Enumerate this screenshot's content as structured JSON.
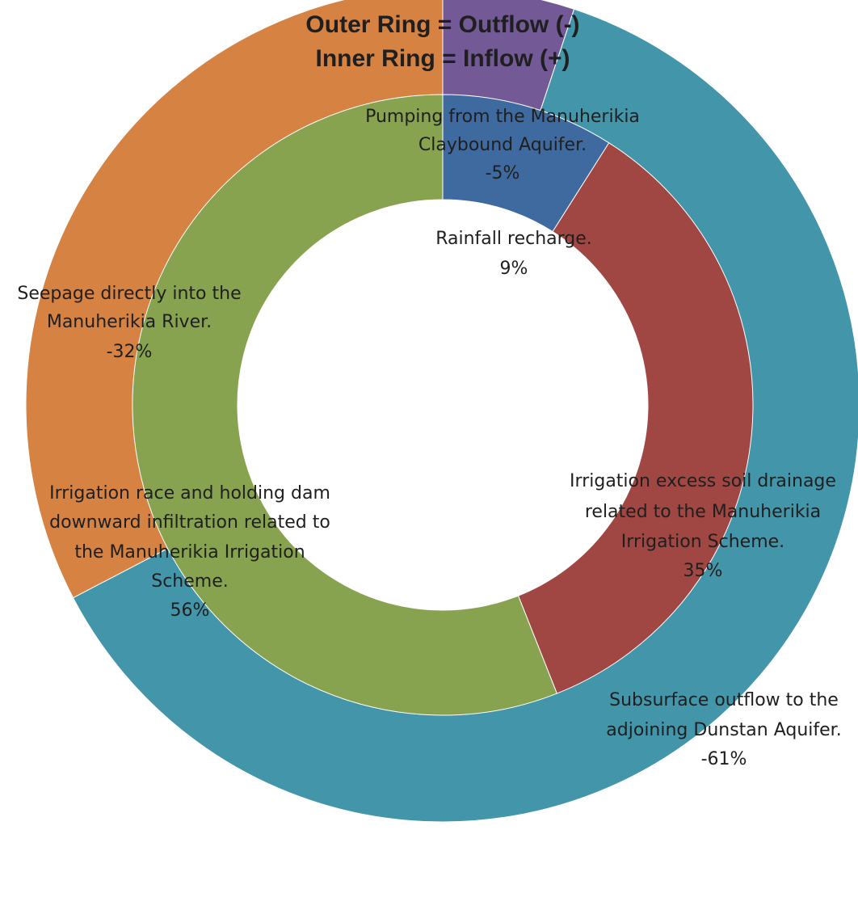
{
  "chart_data": {
    "type": "pie",
    "subtype": "doughnut",
    "title_lines": [
      "Outer Ring = Outflow (-)",
      "Inner Ring = Inflow (+)"
    ],
    "rings": [
      {
        "name": "Outflow",
        "position": "outer",
        "slices": [
          {
            "label": "Pumping from the Manuherikia Claybound Aquifer.",
            "value": -5,
            "value_label": "-5%",
            "color": "#735a97"
          },
          {
            "label": "Subsurface outflow to the adjoining Dunstan Aquifer.",
            "value": -61,
            "value_label": "-61%",
            "color": "#4395aa"
          },
          {
            "label": "Seepage directly into the Manuherikia River.",
            "value": -32,
            "value_label": "-32%",
            "color": "#d68242"
          }
        ]
      },
      {
        "name": "Inflow",
        "position": "inner",
        "slices": [
          {
            "label": "Rainfall recharge.",
            "value": 9,
            "value_label": "9%",
            "color": "#3e6aa0"
          },
          {
            "label": "Irrigation excess soil drainage related to the Manuherikia Irrigation Scheme.",
            "value": 35,
            "value_label": "35%",
            "color": "#a04643"
          },
          {
            "label": "Irrigation race and holding dam downward infiltration related to the Manuherikia Irrigation Scheme.",
            "value": 56,
            "value_label": "56%",
            "color": "#87a34f"
          }
        ]
      }
    ],
    "legend": "none"
  },
  "labels": {
    "pumping": [
      "Pumping from the Manuherikia",
      "Claybound Aquifer.",
      "-5%"
    ],
    "subsurface": [
      "Subsurface outflow to the",
      "adjoining Dunstan Aquifer.",
      "-61%"
    ],
    "seepage": [
      "Seepage directly into the",
      "Manuherikia River.",
      "-32%"
    ],
    "rainfall": [
      "Rainfall recharge.",
      "9%"
    ],
    "excess": [
      "Irrigation excess soil drainage",
      "related to the Manuherikia",
      "Irrigation Scheme.",
      "35%"
    ],
    "race": [
      "Irrigation race and holding dam",
      "downward infiltration related to",
      "the Manuherikia Irrigation",
      "Scheme.",
      "56%"
    ]
  }
}
